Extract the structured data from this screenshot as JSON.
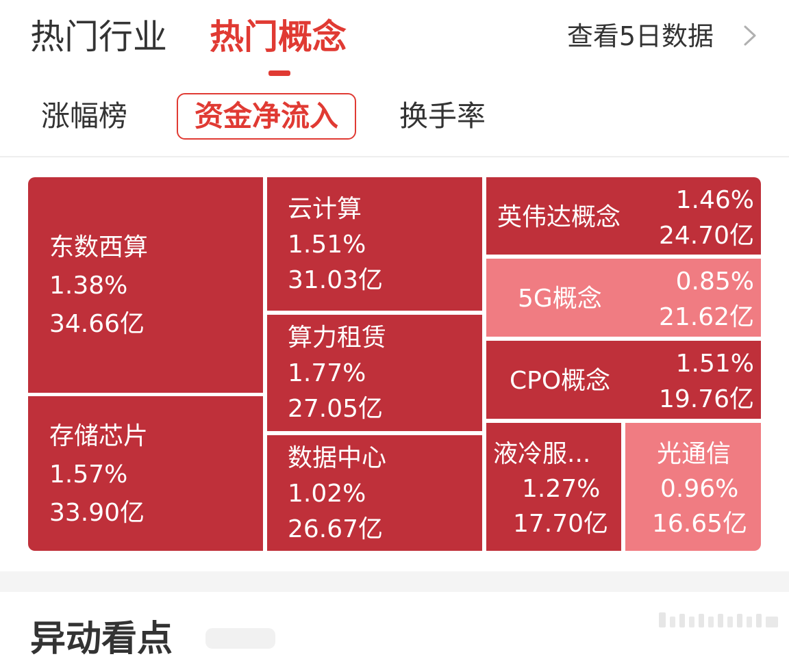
{
  "header": {
    "tabs": [
      {
        "label": "热门行业",
        "active": false
      },
      {
        "label": "热门概念",
        "active": true
      }
    ],
    "five_day_label": "查看5日数据",
    "chevron_icon": "chevron-right-icon"
  },
  "subtabs": [
    {
      "label": "涨幅榜",
      "active": false
    },
    {
      "label": "资金净流入",
      "active": true
    },
    {
      "label": "换手率",
      "active": false
    }
  ],
  "colors": {
    "accent": "#e03a33",
    "tile_dark": "#bf303a",
    "tile_light": "#f07c82"
  },
  "treemap": {
    "tiles": [
      {
        "name": "东数西算",
        "change": "1.38%",
        "inflow": "34.66亿"
      },
      {
        "name": "存储芯片",
        "change": "1.57%",
        "inflow": "33.90亿"
      },
      {
        "name": "云计算",
        "change": "1.51%",
        "inflow": "31.03亿"
      },
      {
        "name": "算力租赁",
        "change": "1.77%",
        "inflow": "27.05亿"
      },
      {
        "name": "数据中心",
        "change": "1.02%",
        "inflow": "26.67亿"
      },
      {
        "name": "英伟达概念",
        "change": "1.46%",
        "inflow": "24.70亿"
      },
      {
        "name": "5G概念",
        "change": "0.85%",
        "inflow": "21.62亿"
      },
      {
        "name": "CPO概念",
        "change": "1.51%",
        "inflow": "19.76亿"
      },
      {
        "name": "液冷服...",
        "change": "1.27%",
        "inflow": "17.70亿"
      },
      {
        "name": "光通信",
        "change": "0.96%",
        "inflow": "16.65亿"
      }
    ]
  },
  "bottom": {
    "section_title": "异动看点"
  }
}
